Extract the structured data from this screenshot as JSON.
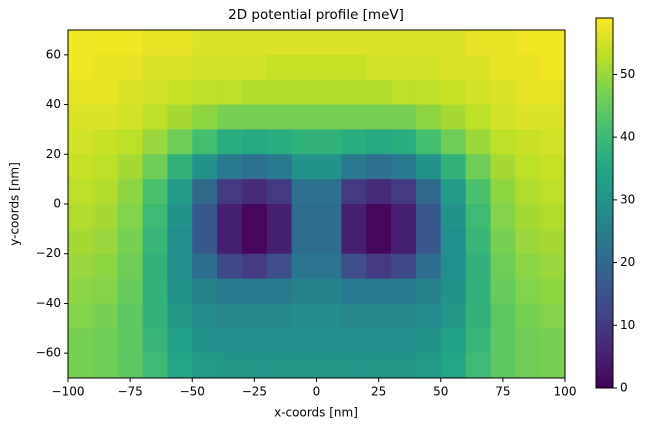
{
  "chart_data": {
    "type": "heatmap",
    "title": "2D potential profile [meV]",
    "xlabel": "x-coords [nm]",
    "ylabel": "y-coords [nm]",
    "x": [
      -95,
      -85,
      -75,
      -65,
      -55,
      -45,
      -35,
      -25,
      -15,
      -5,
      5,
      15,
      25,
      35,
      45,
      55,
      65,
      75,
      85,
      95
    ],
    "y": [
      65,
      55,
      45,
      35,
      25,
      15,
      5,
      -5,
      -15,
      -25,
      -35,
      -45,
      -55,
      -65
    ],
    "z": [
      [
        58,
        58,
        58,
        57,
        57,
        56,
        56,
        56,
        56,
        56,
        56,
        56,
        56,
        56,
        56,
        56,
        57,
        57,
        58,
        58
      ],
      [
        58,
        57,
        57,
        56,
        56,
        55,
        55,
        55,
        54,
        54,
        54,
        54,
        55,
        55,
        55,
        56,
        56,
        57,
        57,
        58
      ],
      [
        57,
        57,
        56,
        55,
        54,
        53,
        53,
        52,
        52,
        52,
        52,
        52,
        52,
        53,
        53,
        54,
        55,
        56,
        57,
        57
      ],
      [
        56,
        56,
        55,
        53,
        51,
        49,
        47,
        47,
        47,
        47,
        47,
        47,
        47,
        47,
        49,
        51,
        53,
        55,
        56,
        56
      ],
      [
        55,
        54,
        53,
        50,
        46,
        41,
        37,
        36,
        37,
        38,
        38,
        37,
        36,
        37,
        41,
        46,
        50,
        53,
        54,
        55
      ],
      [
        54,
        53,
        51,
        46,
        38,
        30,
        24,
        22,
        24,
        30,
        30,
        24,
        22,
        24,
        30,
        38,
        46,
        51,
        53,
        54
      ],
      [
        53,
        52,
        49,
        42,
        32,
        20,
        10,
        7,
        10,
        22,
        22,
        10,
        7,
        10,
        20,
        32,
        42,
        49,
        52,
        53
      ],
      [
        52,
        51,
        48,
        40,
        30,
        16,
        5,
        1,
        5,
        21,
        21,
        5,
        1,
        5,
        16,
        30,
        40,
        48,
        51,
        52
      ],
      [
        51,
        50,
        47,
        39,
        29,
        16,
        5,
        1,
        5,
        21,
        21,
        5,
        1,
        5,
        16,
        29,
        39,
        47,
        50,
        51
      ],
      [
        50,
        49,
        46,
        38,
        29,
        21,
        13,
        10,
        14,
        23,
        23,
        14,
        10,
        13,
        21,
        29,
        38,
        46,
        49,
        50
      ],
      [
        49,
        48,
        45,
        38,
        30,
        26,
        24,
        24,
        24,
        26,
        26,
        24,
        24,
        24,
        26,
        30,
        38,
        45,
        48,
        49
      ],
      [
        48,
        47,
        44,
        38,
        31,
        28,
        27,
        27,
        27,
        28,
        28,
        27,
        27,
        27,
        28,
        31,
        38,
        44,
        47,
        48
      ],
      [
        47,
        46,
        44,
        39,
        33,
        30,
        29,
        29,
        29,
        29,
        29,
        29,
        29,
        29,
        30,
        33,
        39,
        44,
        46,
        47
      ],
      [
        47,
        46,
        44,
        40,
        35,
        32,
        31,
        31,
        31,
        31,
        31,
        31,
        31,
        31,
        32,
        35,
        40,
        44,
        46,
        47
      ]
    ],
    "xlim": [
      -100,
      100
    ],
    "xticks": [
      {
        "value": -100,
        "label": "−100"
      },
      {
        "value": -75,
        "label": "−75"
      },
      {
        "value": -50,
        "label": "−50"
      },
      {
        "value": -25,
        "label": "−25"
      },
      0,
      25,
      50,
      75,
      100
    ],
    "ylim": [
      -70,
      70
    ],
    "yticks": [
      {
        "value": -60,
        "label": "−60"
      },
      {
        "value": -40,
        "label": "−40"
      },
      {
        "value": -20,
        "label": "−20"
      },
      0,
      20,
      40,
      60
    ],
    "clim": [
      0,
      59
    ],
    "cticks": [
      0,
      10,
      20,
      30,
      40,
      50
    ],
    "colormap": [
      "#440154",
      "#482475",
      "#414487",
      "#355f8d",
      "#2a788e",
      "#21918c",
      "#22a884",
      "#44bf70",
      "#7ad151",
      "#bddf26",
      "#fde725"
    ]
  }
}
